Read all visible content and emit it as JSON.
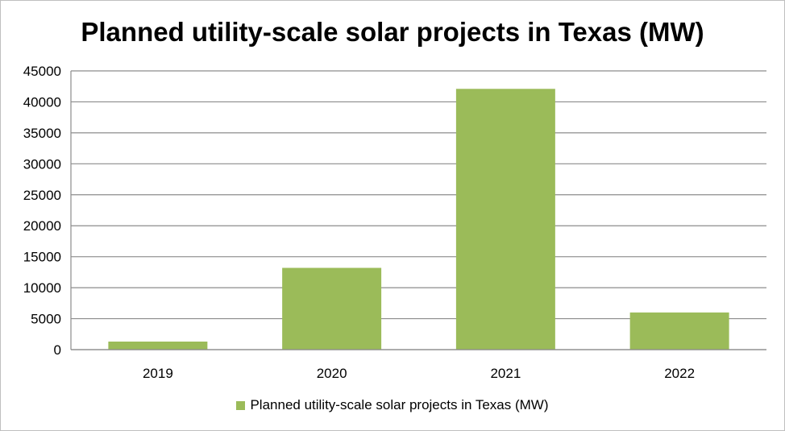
{
  "chart_data": {
    "type": "bar",
    "title": "Planned utility-scale solar projects in Texas (MW)",
    "categories": [
      "2019",
      "2020",
      "2021",
      "2022"
    ],
    "series": [
      {
        "name": "Planned utility-scale solar projects in Texas (MW)",
        "values": [
          1300,
          13200,
          42100,
          6000
        ],
        "color": "#9bbb59"
      }
    ],
    "ylim": [
      0,
      45000
    ],
    "yticks": [
      "0",
      "5000",
      "10000",
      "15000",
      "20000",
      "25000",
      "30000",
      "35000",
      "40000",
      "45000"
    ],
    "xlabel": "",
    "ylabel": "",
    "grid": true,
    "legend_position": "bottom"
  }
}
